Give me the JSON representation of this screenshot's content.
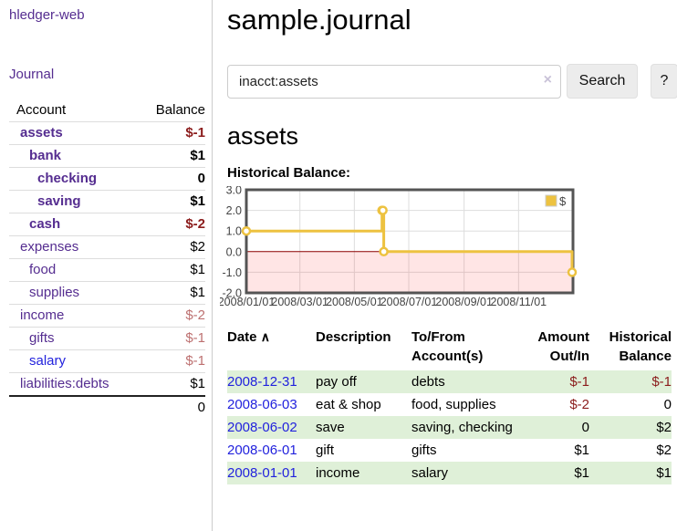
{
  "app": {
    "brand": "hledger-web",
    "nav_journal": "Journal"
  },
  "sidebar": {
    "headers": {
      "account": "Account",
      "balance": "Balance"
    },
    "accounts": [
      {
        "name": "assets",
        "level": 1,
        "bold": true,
        "link_color": "purple",
        "balance": "$-1",
        "balance_style": "neg-strong"
      },
      {
        "name": "bank",
        "level": 2,
        "bold": true,
        "link_color": "purple",
        "balance": "$1",
        "balance_style": "pos"
      },
      {
        "name": "checking",
        "level": 3,
        "bold": true,
        "link_color": "purple",
        "balance": "0",
        "balance_style": "pos"
      },
      {
        "name": "saving",
        "level": 3,
        "bold": true,
        "link_color": "purple",
        "balance": "$1",
        "balance_style": "pos"
      },
      {
        "name": "cash",
        "level": 2,
        "bold": true,
        "link_color": "purple",
        "balance": "$-2",
        "balance_style": "neg-strong"
      },
      {
        "name": "expenses",
        "level": 1,
        "bold": false,
        "link_color": "purple",
        "balance": "$2",
        "balance_style": "pos"
      },
      {
        "name": "food",
        "level": 2,
        "bold": false,
        "link_color": "purple",
        "balance": "$1",
        "balance_style": "pos"
      },
      {
        "name": "supplies",
        "level": 2,
        "bold": false,
        "link_color": "purple",
        "balance": "$1",
        "balance_style": "pos"
      },
      {
        "name": "income",
        "level": 1,
        "bold": false,
        "link_color": "purple",
        "balance": "$-2",
        "balance_style": "neg-soft"
      },
      {
        "name": "gifts",
        "level": 2,
        "bold": false,
        "link_color": "purple",
        "balance": "$-1",
        "balance_style": "neg-soft"
      },
      {
        "name": "salary",
        "level": 2,
        "bold": false,
        "link_color": "blue",
        "balance": "$-1",
        "balance_style": "neg-soft"
      },
      {
        "name": "liabilities:debts",
        "level": 1,
        "bold": false,
        "link_color": "purple",
        "balance": "$1",
        "balance_style": "pos"
      }
    ],
    "total": "0"
  },
  "header": {
    "title": "sample.journal"
  },
  "search": {
    "value": "inacct:assets",
    "clear_icon": "×",
    "button_label": "Search",
    "help_label": "?"
  },
  "main": {
    "account_title": "assets",
    "chart_title": "Historical Balance:",
    "table": {
      "columns": [
        {
          "line1": "Date",
          "line2": "",
          "sort_icon": "∧"
        },
        {
          "line1": "Description",
          "line2": ""
        },
        {
          "line1": "To/From",
          "line2": "Account(s)"
        },
        {
          "line1": "Amount",
          "line2": "Out/In"
        },
        {
          "line1": "Historical",
          "line2": "Balance"
        }
      ],
      "rows": [
        {
          "date": "2008-12-31",
          "description": "pay off",
          "accounts": "debts",
          "amount": "$-1",
          "amount_negative": true,
          "balance": "$-1",
          "balance_negative": true
        },
        {
          "date": "2008-06-03",
          "description": "eat & shop",
          "accounts": "food, supplies",
          "amount": "$-2",
          "amount_negative": true,
          "balance": "0",
          "balance_negative": false
        },
        {
          "date": "2008-06-02",
          "description": "save",
          "accounts": "saving, checking",
          "amount": "0",
          "amount_negative": false,
          "balance": "$2",
          "balance_negative": false
        },
        {
          "date": "2008-06-01",
          "description": "gift",
          "accounts": "gifts",
          "amount": "$1",
          "amount_negative": false,
          "balance": "$2",
          "balance_negative": false
        },
        {
          "date": "2008-01-01",
          "description": "income",
          "accounts": "salary",
          "amount": "$1",
          "amount_negative": false,
          "balance": "$1",
          "balance_negative": false
        }
      ]
    }
  },
  "chart_data": {
    "type": "line",
    "step": true,
    "title": "Historical Balance:",
    "series": [
      {
        "name": "$",
        "color": "#edc240",
        "points": [
          {
            "date": "2008-01-01",
            "value": 1
          },
          {
            "date": "2008-06-01",
            "value": 2
          },
          {
            "date": "2008-06-02",
            "value": 2
          },
          {
            "date": "2008-06-03",
            "value": 0
          },
          {
            "date": "2008-12-31",
            "value": -1
          }
        ]
      }
    ],
    "x_range": [
      "2008-01-01",
      "2009-01-01"
    ],
    "y_range": [
      -2,
      3
    ],
    "y_ticks": [
      3.0,
      2.0,
      1.0,
      0.0,
      -1.0,
      -2.0
    ],
    "x_ticks": [
      {
        "date": "2008-01-01",
        "label": "2008/01/01"
      },
      {
        "date": "2008-03-01",
        "label": "2008/03/01"
      },
      {
        "date": "2008-05-01",
        "label": "2008/05/01"
      },
      {
        "date": "2008-07-01",
        "label": "2008/07/01"
      },
      {
        "date": "2008-09-01",
        "label": "2008/09/01"
      },
      {
        "date": "2008-11-01",
        "label": "2008/11/01"
      }
    ],
    "legend": {
      "label": "$",
      "position": "top-right"
    },
    "grid": true,
    "colors": {
      "line": "#edc240",
      "marker_fill": "#ffffff",
      "negative_region_fill": "rgba(255,0,0,0.10)",
      "zero_line": "#8b0000",
      "gridline": "#dddddd",
      "border": "#545454",
      "axis_text": "#444444"
    }
  }
}
